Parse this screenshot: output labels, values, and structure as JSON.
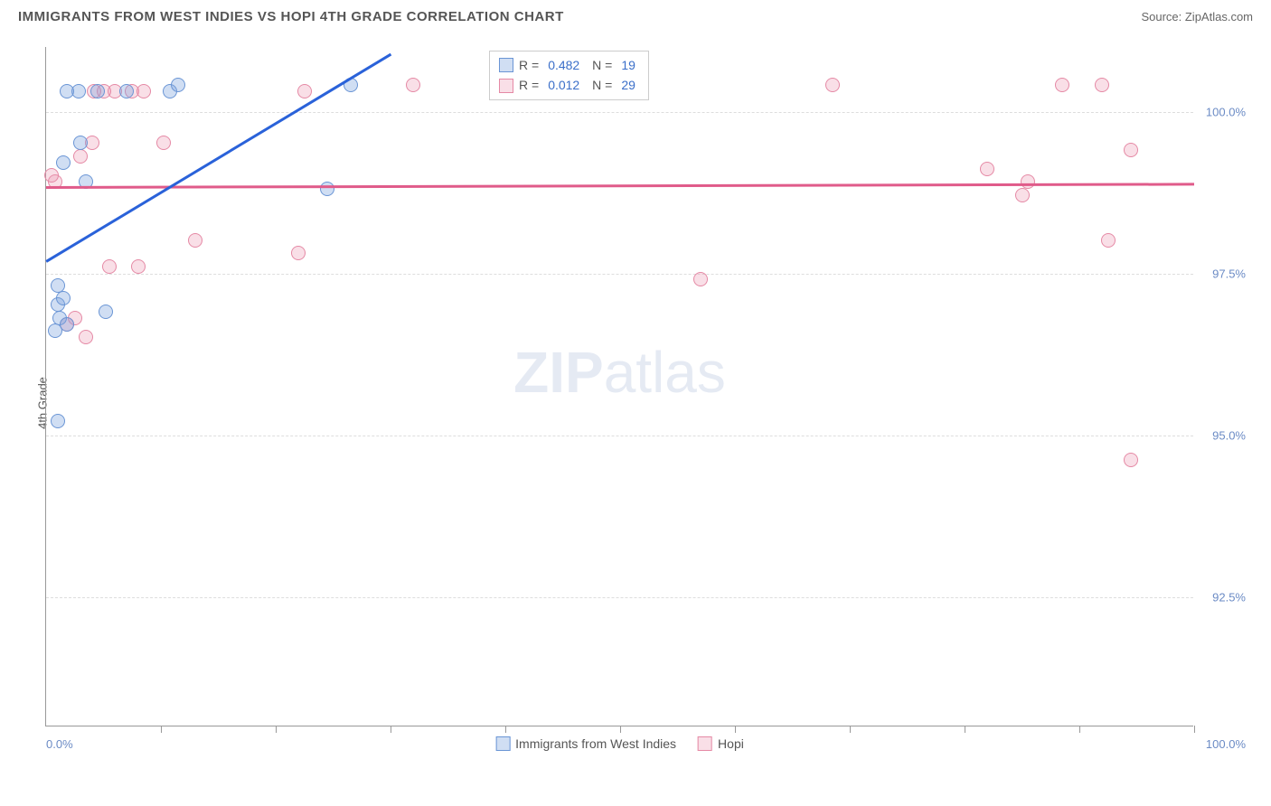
{
  "header": {
    "title": "IMMIGRANTS FROM WEST INDIES VS HOPI 4TH GRADE CORRELATION CHART",
    "source": "Source: ZipAtlas.com"
  },
  "axis": {
    "ylabel": "4th Grade",
    "x_min_label": "0.0%",
    "x_max_label": "100.0%",
    "xlim": [
      0,
      100
    ],
    "ylim": [
      90.5,
      101
    ],
    "yticks": [
      {
        "v": 92.5,
        "label": "92.5%"
      },
      {
        "v": 95.0,
        "label": "95.0%"
      },
      {
        "v": 97.5,
        "label": "97.5%"
      },
      {
        "v": 100.0,
        "label": "100.0%"
      }
    ],
    "xtick_positions": [
      10,
      20,
      30,
      40,
      50,
      60,
      70,
      80,
      90,
      100
    ],
    "grid_color": "#dddddd",
    "font_color": "#6b8bc5"
  },
  "series": {
    "a": {
      "name": "Immigrants from West Indies",
      "color_fill": "rgba(120, 160, 220, 0.35)",
      "color_stroke": "#6a95d5",
      "line_color": "#2a62d9",
      "R": "0.482",
      "N": "19",
      "points": [
        [
          1.2,
          96.8
        ],
        [
          1.0,
          97.0
        ],
        [
          1.5,
          97.1
        ],
        [
          1.8,
          96.7
        ],
        [
          1.0,
          97.3
        ],
        [
          0.8,
          96.6
        ],
        [
          2.8,
          100.3
        ],
        [
          3.0,
          99.5
        ],
        [
          5.2,
          96.9
        ],
        [
          3.5,
          98.9
        ],
        [
          1.5,
          99.2
        ],
        [
          1.0,
          95.2
        ],
        [
          10.8,
          100.3
        ],
        [
          11.5,
          100.4
        ],
        [
          7.0,
          100.3
        ],
        [
          26.5,
          100.4
        ],
        [
          24.5,
          98.8
        ],
        [
          1.8,
          100.3
        ],
        [
          4.5,
          100.3
        ]
      ],
      "trend": {
        "x1": 0,
        "y1": 97.7,
        "x2": 30,
        "y2": 100.9
      }
    },
    "b": {
      "name": "Hopi",
      "color_fill": "rgba(235, 150, 175, 0.30)",
      "color_stroke": "#e589a5",
      "line_color": "#e05b8a",
      "R": "0.012",
      "N": "29",
      "points": [
        [
          0.8,
          98.9
        ],
        [
          0.5,
          99.0
        ],
        [
          3.0,
          99.3
        ],
        [
          4.0,
          99.5
        ],
        [
          2.5,
          96.8
        ],
        [
          3.5,
          96.5
        ],
        [
          1.8,
          96.7
        ],
        [
          5.5,
          97.6
        ],
        [
          6.0,
          100.3
        ],
        [
          7.5,
          100.3
        ],
        [
          8.0,
          97.6
        ],
        [
          8.5,
          100.3
        ],
        [
          10.2,
          99.5
        ],
        [
          13.0,
          98.0
        ],
        [
          22.0,
          97.8
        ],
        [
          32.0,
          100.4
        ],
        [
          57.0,
          97.4
        ],
        [
          68.5,
          100.4
        ],
        [
          82.0,
          99.1
        ],
        [
          85.5,
          98.9
        ],
        [
          88.5,
          100.4
        ],
        [
          92.0,
          100.4
        ],
        [
          92.5,
          98.0
        ],
        [
          94.5,
          99.4
        ],
        [
          94.5,
          94.6
        ],
        [
          85.0,
          98.7
        ],
        [
          5.0,
          100.3
        ],
        [
          4.2,
          100.3
        ],
        [
          22.5,
          100.3
        ]
      ],
      "trend": {
        "x1": 0,
        "y1": 98.85,
        "x2": 100,
        "y2": 98.9
      }
    }
  },
  "legend_bottom": {
    "a_label": "Immigrants from West Indies",
    "b_label": "Hopi"
  },
  "watermark": {
    "part1": "ZIP",
    "part2": "atlas"
  },
  "chart_style": {
    "point_diameter": 16,
    "point_stroke_width": 1.5,
    "background": "#ffffff"
  }
}
